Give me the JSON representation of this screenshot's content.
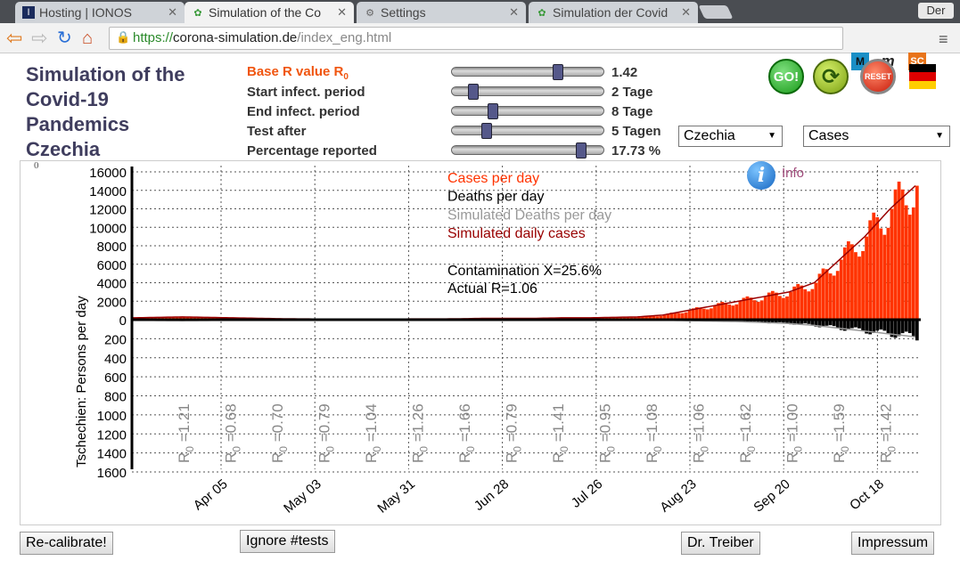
{
  "browser": {
    "tabs": [
      {
        "label": "Hosting | IONOS",
        "icon": "ionos-icon"
      },
      {
        "label": "Simulation of the Co",
        "icon": "virus-icon"
      },
      {
        "label": "Settings",
        "icon": "gear-icon"
      },
      {
        "label": "Simulation der Covid",
        "icon": "virus-icon"
      }
    ],
    "profile": "Der",
    "url_prefix": "https://",
    "url_host": "corona-simulation.de",
    "url_path": "/index_eng.html",
    "extensions": [
      "M",
      "m",
      "SC"
    ]
  },
  "page": {
    "title_lines": [
      "Simulation of the",
      "Covid-19",
      "Pandemics",
      "Czechia"
    ],
    "params": [
      {
        "label": "Base R value R",
        "sub": "0",
        "value": "1.42",
        "pos": 0.69,
        "highlight": true
      },
      {
        "label": "Start infect. period",
        "value": "2 Tage",
        "pos": 0.14
      },
      {
        "label": "End infect. period",
        "value": "8 Tage",
        "pos": 0.27
      },
      {
        "label": "Test after",
        "value": "5 Tagen",
        "pos": 0.23
      },
      {
        "label": "Percentage reported",
        "value": "17.73 %",
        "pos": 0.85
      }
    ],
    "country_select": "Czechia",
    "mode_select": "Cases",
    "buttons": {
      "go": "GO!",
      "reset": "RESET",
      "recalibrate": "Re-calibrate!",
      "ignore": "Ignore #tests",
      "treiber": "Dr. Treiber",
      "impressum": "Impressum"
    },
    "info_label": "Info"
  },
  "chart_data": {
    "type": "bar",
    "ylabel": "Tschechien: Persons per day",
    "corner_label": "0",
    "y_ticks_up": [
      16000,
      14000,
      12000,
      10000,
      8000,
      6000,
      4000,
      2000,
      0
    ],
    "y_ticks_down": [
      200,
      400,
      600,
      800,
      1000,
      1200,
      1400,
      1600
    ],
    "x_ticks": [
      "Apr 05",
      "May 03",
      "May 31",
      "Jun 28",
      "Jul 26",
      "Aug 23",
      "Sep 20",
      "Oct 18"
    ],
    "r0_labels": [
      "1.21",
      "0.68",
      "0.70",
      "0.79",
      "1.04",
      "1.26",
      "1.66",
      "0.79",
      "1.41",
      "0.95",
      "1.08",
      "1.06",
      "1.62",
      "1.00",
      "1.59",
      "1.42"
    ],
    "legend": [
      {
        "name": "Cases per day",
        "color": "#ff3300"
      },
      {
        "name": "Deaths per day",
        "color": "#000000"
      },
      {
        "name": "Simulated Deaths per day",
        "color": "#999999"
      },
      {
        "name": "Simulated daily cases",
        "color": "#990000"
      }
    ],
    "annotations": [
      "Contamination X=25.6%",
      "Actual R=1.06"
    ],
    "cases_weekly": [
      200,
      250,
      300,
      250,
      200,
      150,
      100,
      80,
      60,
      60,
      60,
      80,
      80,
      100,
      150,
      150,
      150,
      200,
      200,
      250,
      300,
      500,
      1000,
      1500,
      2000,
      2500,
      3000,
      4000,
      6500,
      9000,
      12000,
      14500
    ],
    "deaths_weekly": [
      5,
      8,
      10,
      8,
      5,
      4,
      2,
      1,
      1,
      1,
      1,
      1,
      1,
      1,
      1,
      1,
      1,
      1,
      2,
      2,
      3,
      5,
      10,
      15,
      20,
      30,
      40,
      60,
      90,
      120,
      150,
      180
    ],
    "ylim_up": [
      0,
      16000
    ],
    "ylim_down": [
      0,
      1600
    ]
  }
}
